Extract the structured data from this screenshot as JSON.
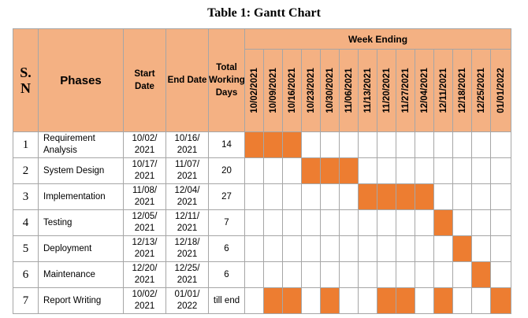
{
  "title": "Table 1: Gantt Chart",
  "headers": {
    "sn": "S. N",
    "phases": "Phases",
    "start": "Start Date",
    "end": "End Date",
    "total": "Total Working Days",
    "week_ending": "Week Ending"
  },
  "weeks": [
    "10/02/2021",
    "10/09/2021",
    "10/16/2021",
    "10/23/2021",
    "10/30/2021",
    "11/06/2021",
    "11/13/2021",
    "11/20/2021",
    "11/27/2021",
    "12/04/2021",
    "12/11/2021",
    "12/18/2021",
    "12/25/2021",
    "01/01/2022"
  ],
  "colors": {
    "header_bg": "#f4b183",
    "bar": "#ed7d31",
    "border": "#a6a6a6"
  },
  "rows": [
    {
      "sn": "1",
      "phase": "Requirement Analysis",
      "start": "10/02/ 2021",
      "end": "10/16/ 2021",
      "days": "14",
      "active": [
        0,
        1,
        2
      ]
    },
    {
      "sn": "2",
      "phase": "System Design",
      "start": "10/17/ 2021",
      "end": "11/07/ 2021",
      "days": "20",
      "active": [
        3,
        4,
        5
      ]
    },
    {
      "sn": "3",
      "phase": "Implementation",
      "start": "11/08/ 2021",
      "end": "12/04/ 2021",
      "days": "27",
      "active": [
        6,
        7,
        8,
        9
      ]
    },
    {
      "sn": "4",
      "phase": "Testing",
      "start": "12/05/ 2021",
      "end": "12/11/ 2021",
      "days": "7",
      "active": [
        10
      ]
    },
    {
      "sn": "5",
      "phase": "Deployment",
      "start": "12/13/ 2021",
      "end": "12/18/ 2021",
      "days": "6",
      "active": [
        11
      ]
    },
    {
      "sn": "6",
      "phase": "Maintenance",
      "start": "12/20/ 2021",
      "end": "12/25/ 2021",
      "days": "6",
      "active": [
        12
      ]
    },
    {
      "sn": "7",
      "phase": "Report Writing",
      "start": "10/02/ 2021",
      "end": "01/01/ 2022",
      "days": "till end",
      "active": [
        1,
        2,
        4,
        7,
        8,
        10,
        13
      ]
    }
  ]
}
